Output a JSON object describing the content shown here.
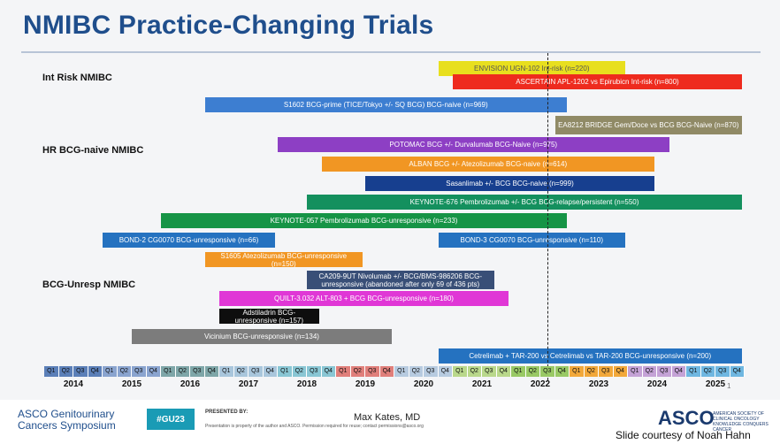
{
  "page": {
    "title": "NMIBC Practice-Changing Trials"
  },
  "chart_data": {
    "type": "gantt",
    "categories": [
      {
        "name": "Int Risk NMIBC"
      },
      {
        "name": "HR BCG-naive NMIBC"
      },
      {
        "name": "BCG-Unresp NMIBC"
      }
    ],
    "x_range": [
      "2014-Q1",
      "2025-Q4"
    ],
    "current_marker": "2022-Q3",
    "years": [
      "2014",
      "2015",
      "2016",
      "2017",
      "2018",
      "2019",
      "2020",
      "2021",
      "2022",
      "2023",
      "2024",
      "2025"
    ],
    "quarters": [
      "Q1",
      "Q2",
      "Q3",
      "Q4"
    ],
    "year_colors": [
      "#5b7fb8",
      "#8aa4cf",
      "#7ea6a8",
      "#a9c6dc",
      "#89c6d4",
      "#e07f7b",
      "#b7cbe0",
      "#b9d88b",
      "#99c965",
      "#f2a83a",
      "#c4a2d6",
      "#6fb7e1"
    ],
    "trials": [
      {
        "label": "ENVISION UGN-102 Int-risk (n=220)",
        "category": "Int Risk NMIBC",
        "start": "2020-Q4",
        "end": "2023-Q4",
        "color": "#e8df1e",
        "text_color": "#555555"
      },
      {
        "label": "ASCERTAIN APL-1202 vs Epirubicn Int-risk (n=800)",
        "category": "Int Risk NMIBC",
        "start": "2021-Q1",
        "end": "2025-Q4",
        "color": "#ee2b1e",
        "text_color": "#ffffff"
      },
      {
        "label": "S1602 BCG-prime (TICE/Tokyo +/- SQ BCG) BCG-naive (n=969)",
        "category": "HR BCG-naive NMIBC",
        "start": "2016-Q4",
        "end": "2022-Q4",
        "color": "#3d7ed1",
        "text_color": "#ffffff"
      },
      {
        "label": "EA8212 BRIDGE Gem/Doce vs BCG BCG-Naive (n=870)",
        "category": "HR BCG-naive NMIBC",
        "start": "2022-Q4",
        "end": "2025-Q4",
        "color": "#908a66",
        "text_color": "#ffffff"
      },
      {
        "label": "POTOMAC BCG +/- Durvalumab BCG-Naive (n=975)",
        "category": "HR BCG-naive NMIBC",
        "start": "2018-Q1",
        "end": "2024-Q3",
        "color": "#8d3fc4",
        "text_color": "#ffffff"
      },
      {
        "label": "ALBAN BCG +/- Atezolizumab BCG-naive (n=614)",
        "category": "HR BCG-naive NMIBC",
        "start": "2018-Q4",
        "end": "2024-Q2",
        "color": "#f19623",
        "text_color": "#ffffff"
      },
      {
        "label": "Sasanlimab +/- BCG BCG-naive (n=999)",
        "category": "HR BCG-naive NMIBC",
        "start": "2019-Q3",
        "end": "2024-Q2",
        "color": "#173f8f",
        "text_color": "#ffffff"
      },
      {
        "label": "KEYNOTE-676 Pembrolizumab +/- BCG BCG-relapse/persistent (n=550)",
        "category": "HR BCG-naive NMIBC",
        "start": "2018-Q3",
        "end": "2025-Q4",
        "color": "#14905e",
        "text_color": "#ffffff"
      },
      {
        "label": "KEYNOTE-057 Pembrolizumab BCG-unresponsive (n=233)",
        "category": "BCG-Unresp NMIBC",
        "start": "2016-Q1",
        "end": "2022-Q4",
        "color": "#169446",
        "text_color": "#ffffff"
      },
      {
        "label": "BOND-2 CG0070 BCG-unresponsive (n=66)",
        "category": "BCG-Unresp NMIBC",
        "start": "2015-Q1",
        "end": "2017-Q4",
        "color": "#2572c0",
        "text_color": "#ffffff"
      },
      {
        "label": "BOND-3 CG0070 BCG-unresponsive (n=110)",
        "category": "BCG-Unresp NMIBC",
        "start": "2020-Q4",
        "end": "2023-Q4",
        "color": "#2572c0",
        "text_color": "#ffffff"
      },
      {
        "label": "S1605 Atezolizumab BCG-unresponsive (n=150)",
        "category": "BCG-Unresp NMIBC",
        "start": "2016-Q4",
        "end": "2019-Q2",
        "color": "#f19623",
        "text_color": "#ffffff"
      },
      {
        "label": "CA209-9UT Nivolumab +/- BCG/BMS-986206 BCG-unresponsive (abandoned after only 69 of 436 pts)",
        "category": "BCG-Unresp NMIBC",
        "start": "2018-Q3",
        "end": "2021-Q3",
        "color": "#394f77",
        "text_color": "#ffffff"
      },
      {
        "label": "QUILT-3.032 ALT-803 + BCG BCG-unresponsive (n=180)",
        "category": "BCG-Unresp NMIBC",
        "start": "2017-Q1",
        "end": "2021-Q4",
        "color": "#e037d6",
        "text_color": "#ffffff"
      },
      {
        "label": "Adstiladrin BCG-unresponsive (n=157)",
        "category": "BCG-Unresp NMIBC",
        "start": "2017-Q1",
        "end": "2018-Q3",
        "color": "#0e0e0e",
        "text_color": "#ffffff"
      },
      {
        "label": "Vicinium BCG-unresponsive (n=134)",
        "category": "BCG-Unresp NMIBC",
        "start": "2015-Q3",
        "end": "2019-Q4",
        "color": "#7c7c7c",
        "text_color": "#ffffff"
      },
      {
        "label": "Cetrelimab + TAR-200 vs Cetrelimab vs TAR-200 BCG-unresponsive (n=200)",
        "category": "BCG-Unresp NMIBC",
        "start": "2020-Q4",
        "end": "2025-Q4",
        "color": "#2572c0",
        "text_color": "#ffffff"
      }
    ]
  },
  "footer": {
    "meeting_line1": "ASCO Genitourinary",
    "meeting_line2": "Cancers Symposium",
    "hashtag": "#GU23",
    "presented_by": "PRESENTED BY:",
    "property_note": "Presentation is property of the author and ASCO. Permission required for reuse; contact permissions@asco.org",
    "presenter": "Max Kates, MD",
    "asco_logo": "ASCO",
    "asco_tagline": "AMERICAN SOCIETY OF CLINICAL ONCOLOGY KNOWLEDGE CONQUERS CANCER",
    "courtesy": "Slide courtesy of Noah Hahn",
    "page_number": "1"
  }
}
